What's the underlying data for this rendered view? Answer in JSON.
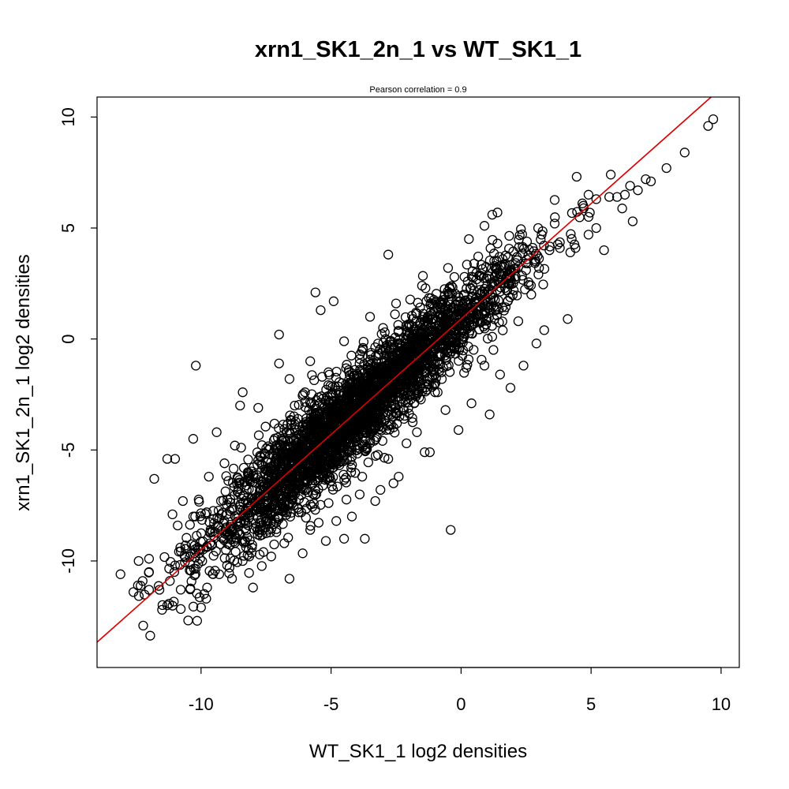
{
  "chart_data": {
    "type": "scatter",
    "title": "xrn1_SK1_2n_1 vs WT_SK1_1",
    "subtitle": "Pearson correlation =  0.9",
    "xlabel": "WT_SK1_1 log2 densities",
    "ylabel": "xrn1_SK1_2n_1 log2 densities",
    "xlim": [
      -14.0,
      10.7
    ],
    "ylim": [
      -14.8,
      10.9
    ],
    "x_ticks": [
      -10,
      -5,
      0,
      5,
      10
    ],
    "x_tick_labels": [
      "-10",
      "-5",
      "0",
      "5",
      "10"
    ],
    "y_ticks": [
      -10,
      -5,
      0,
      5,
      10
    ],
    "y_tick_labels": [
      "-10",
      "-5",
      "0",
      "5",
      "10"
    ],
    "grid": false,
    "legend": "none",
    "marker": "open-circle",
    "point_color": "#000000",
    "fit_line": {
      "intercept": 0.9,
      "slope": 1.04,
      "color": "#dd0000"
    },
    "points": [
      [
        9.7,
        9.9
      ],
      [
        9.5,
        9.6
      ],
      [
        8.6,
        8.4
      ],
      [
        7.9,
        7.7
      ],
      [
        7.3,
        7.1
      ],
      [
        7.1,
        7.2
      ],
      [
        6.8,
        6.7
      ],
      [
        6.5,
        6.9
      ],
      [
        6.3,
        6.5
      ],
      [
        6.6,
        5.3
      ],
      [
        6.0,
        6.4
      ],
      [
        5.7,
        6.4
      ],
      [
        5.2,
        6.3
      ],
      [
        4.9,
        6.5
      ],
      [
        4.7,
        6.0
      ],
      [
        5.5,
        4.0
      ],
      [
        5.2,
        5.0
      ],
      [
        4.9,
        4.7
      ],
      [
        4.4,
        4.1
      ],
      [
        4.1,
        0.9
      ],
      [
        3.8,
        4.1
      ],
      [
        3.6,
        5.2
      ],
      [
        3.1,
        4.7
      ],
      [
        2.9,
        -0.2
      ],
      [
        3.2,
        0.4
      ],
      [
        2.1,
        2.7
      ],
      [
        1.9,
        -2.2
      ],
      [
        1.4,
        5.7
      ],
      [
        1.2,
        5.6
      ],
      [
        1.4,
        4.3
      ],
      [
        0.9,
        5.1
      ],
      [
        1.3,
        2.8
      ],
      [
        1.1,
        1.3
      ],
      [
        0.3,
        4.5
      ],
      [
        0.9,
        -1.2
      ],
      [
        1.1,
        -3.4
      ],
      [
        -0.1,
        -4.1
      ],
      [
        -0.4,
        -8.6
      ],
      [
        -0.6,
        0.8
      ],
      [
        -0.9,
        -2.4
      ],
      [
        -1.2,
        -5.1
      ],
      [
        -1.4,
        -5.1
      ],
      [
        -1.8,
        -2.9
      ],
      [
        -2.1,
        -4.7
      ],
      [
        -2.4,
        -6.2
      ],
      [
        -2.6,
        -6.5
      ],
      [
        -2.8,
        3.8
      ],
      [
        -3.1,
        -6.8
      ],
      [
        -3.3,
        -7.3
      ],
      [
        -3.7,
        -9.0
      ],
      [
        -3.9,
        -7.0
      ],
      [
        -4.2,
        -8.0
      ],
      [
        -4.5,
        -9.0
      ],
      [
        -5.2,
        -9.1
      ],
      [
        -5.4,
        1.3
      ],
      [
        -4.9,
        1.7
      ],
      [
        -5.6,
        2.1
      ],
      [
        -7.0,
        0.2
      ],
      [
        -7.0,
        -1.1
      ],
      [
        -6.6,
        -10.8
      ],
      [
        -7.3,
        -9.8
      ],
      [
        -8.0,
        -11.2
      ],
      [
        -8.4,
        -10.0
      ],
      [
        -8.4,
        -2.4
      ],
      [
        -8.5,
        -3.0
      ],
      [
        -9.4,
        -4.2
      ],
      [
        -9.8,
        -11.7
      ],
      [
        -10.0,
        -12.1
      ],
      [
        -10.2,
        -1.2
      ],
      [
        -10.3,
        -4.5
      ],
      [
        -10.7,
        -7.3
      ],
      [
        -11.0,
        -5.4
      ],
      [
        -11.3,
        -5.4
      ],
      [
        -11.2,
        -10.9
      ],
      [
        -11.3,
        -12.0
      ],
      [
        -11.5,
        -12.2
      ],
      [
        -11.6,
        -11.3
      ],
      [
        -11.8,
        -6.3
      ],
      [
        -12.0,
        -10.5
      ],
      [
        -12.0,
        -11.3
      ],
      [
        -12.4,
        -10.0
      ],
      [
        -12.6,
        -11.4
      ],
      [
        -13.1,
        -10.6
      ],
      [
        -9.6,
        -9.3
      ],
      [
        -9.2,
        -7.9
      ],
      [
        -8.9,
        -8.8
      ],
      [
        -9.7,
        -6.2
      ],
      [
        -10.6,
        -9.3
      ],
      [
        -10.9,
        -8.4
      ],
      [
        -10.3,
        -8.0
      ],
      [
        -11.1,
        -7.9
      ],
      [
        -9.1,
        -5.6
      ],
      [
        -8.7,
        -4.8
      ],
      [
        -7.8,
        -3.1
      ],
      [
        -6.6,
        -1.8
      ],
      [
        -5.8,
        -1.0
      ],
      [
        -4.5,
        -0.1
      ],
      [
        -3.5,
        1.0
      ],
      [
        -2.5,
        1.6
      ],
      [
        -1.5,
        2.4
      ],
      [
        -0.5,
        3.2
      ],
      [
        0.5,
        3.4
      ],
      [
        1.6,
        3.6
      ],
      [
        2.5,
        3.1
      ],
      [
        3.4,
        4.0
      ],
      [
        2.4,
        -1.2
      ],
      [
        1.5,
        -1.6
      ],
      [
        0.4,
        -2.9
      ],
      [
        -0.6,
        -3.2
      ],
      [
        -1.7,
        -4.2
      ],
      [
        -2.8,
        -5.4
      ],
      [
        -3.8,
        -6.2
      ],
      [
        -4.8,
        -8.2
      ],
      [
        -5.8,
        -8.6
      ],
      [
        -6.8,
        -9.2
      ],
      [
        -7.6,
        -9.6
      ],
      [
        -8.3,
        -9.1
      ],
      [
        -9.3,
        -10.6
      ],
      [
        -7.7,
        -5.3
      ],
      [
        -6.4,
        -3.0
      ],
      [
        -5.1,
        -1.5
      ],
      [
        -3.9,
        -0.9
      ],
      [
        -2.9,
        0.0
      ],
      [
        -1.9,
        0.6
      ],
      [
        -0.8,
        1.4
      ],
      [
        0.1,
        2.0
      ],
      [
        1.0,
        2.4
      ],
      [
        2.0,
        2.5
      ],
      [
        3.0,
        3.2
      ],
      [
        4.2,
        3.9
      ],
      [
        -3.0,
        0.5
      ],
      [
        -4.3,
        -2.0
      ],
      [
        -6.0,
        -4.1
      ],
      [
        -7.2,
        -5.3
      ],
      [
        -8.2,
        -6.0
      ],
      [
        -6.3,
        -7.6
      ],
      [
        -5.0,
        -6.4
      ],
      [
        -2.2,
        -3.6
      ],
      [
        -1.0,
        -2.4
      ],
      [
        0.2,
        -1.3
      ],
      [
        1.2,
        0.1
      ],
      [
        2.2,
        0.8
      ],
      [
        -4.0,
        -4.6
      ],
      [
        -5.5,
        -6.0
      ],
      [
        -7.0,
        -7.2
      ],
      [
        -3.0,
        -2.3
      ],
      [
        -1.5,
        -1.0
      ],
      [
        -6.0,
        -2.4
      ],
      [
        -4.6,
        -3.0
      ],
      [
        -3.4,
        -1.6
      ],
      [
        -2.0,
        -0.6
      ],
      [
        -0.9,
        0.0
      ],
      [
        0.4,
        0.6
      ],
      [
        1.8,
        1.7
      ],
      [
        2.7,
        2.0
      ],
      [
        -8.5,
        -7.0
      ],
      [
        -9.5,
        -8.3
      ],
      [
        -10.1,
        -9.5
      ],
      [
        -11.0,
        -10.2
      ],
      [
        -12.0,
        -9.9
      ]
    ]
  }
}
